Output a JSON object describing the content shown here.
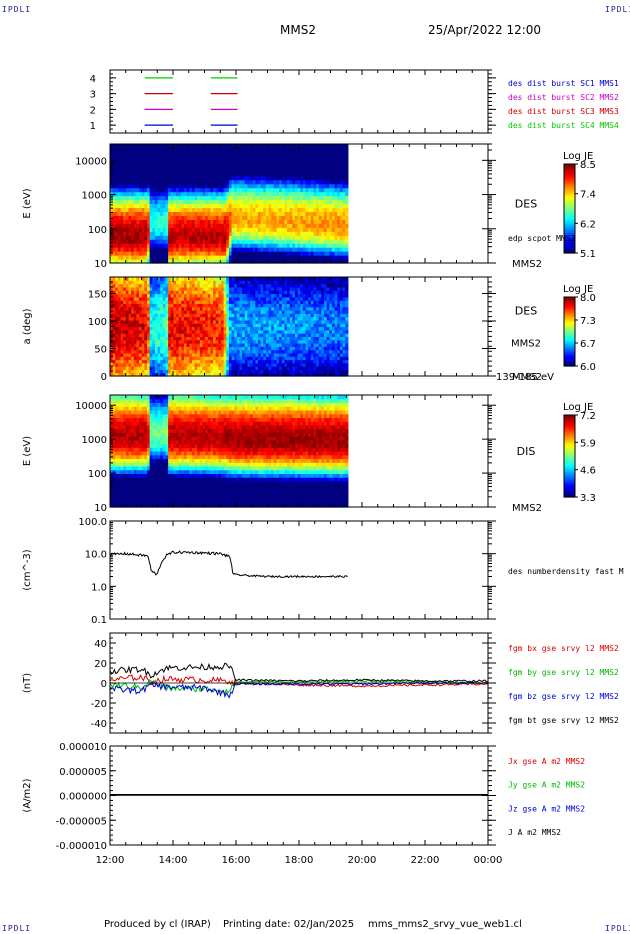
{
  "header": {
    "corner_label": "IPDLI",
    "spacecraft": "MMS2",
    "datetime": "25/Apr/2022 12:00"
  },
  "footer": {
    "produced_by": "Produced by cl (IRAP)",
    "printing_date": "Printing date: 02/Jan/2025",
    "filename": "mms_mms2_srvy_vue_web1.cl"
  },
  "colors": {
    "mms1": "#0000cc",
    "mms2": "#cc00cc",
    "mms3": "#cc0000",
    "mms4": "#00cc00",
    "bx": "#dd0000",
    "by": "#00bb00",
    "bz": "#0000dd",
    "bt": "#000000"
  },
  "chart_data": [
    {
      "type": "timeline",
      "id": "burst",
      "ylabel": "",
      "yticks": [
        "1",
        "2",
        "3",
        "4"
      ],
      "ylim": [
        0.5,
        4.5
      ],
      "legend": [
        {
          "name": "des dist burst SC1 MMS1",
          "color": "#0000cc"
        },
        {
          "name": "des dist burst SC2 MMS2",
          "color": "#cc00cc"
        },
        {
          "name": "des dist burst SC3 MMS3",
          "color": "#cc0000"
        },
        {
          "name": "des dist burst SC4 MMS4",
          "color": "#00cc00"
        }
      ],
      "segments_hours": [
        [
          13.1,
          14.0
        ],
        [
          15.2,
          16.05
        ]
      ]
    },
    {
      "type": "heatmap",
      "id": "des-energy",
      "ylabel": "E (eV)",
      "yscale": "log",
      "ylim": [
        10,
        30000
      ],
      "yticks": [
        "10",
        "100",
        "1000",
        "10000"
      ],
      "instrument": "DES",
      "extra_label": "edp scpot MMS2",
      "spacecraft_label": "MMS2",
      "colorbar": {
        "title": "Log JE",
        "ticks": [
          "5.1",
          "6.2",
          "7.4",
          "8.5"
        ]
      },
      "data_end_hour": 19.55,
      "profile": [
        {
          "x": 12.0,
          "peak": 60,
          "level": 8.4
        },
        {
          "x": 13.2,
          "peak": 60,
          "level": 8.4
        },
        {
          "x": 13.3,
          "peak": 150,
          "level": 6.5
        },
        {
          "x": 13.8,
          "peak": 150,
          "level": 6.5
        },
        {
          "x": 13.85,
          "peak": 60,
          "level": 8.3
        },
        {
          "x": 15.7,
          "peak": 60,
          "level": 8.3
        },
        {
          "x": 15.9,
          "peak": 200,
          "level": 7.5
        },
        {
          "x": 19.55,
          "peak": 120,
          "level": 7.6
        }
      ]
    },
    {
      "type": "heatmap",
      "id": "des-pitch",
      "ylabel": "a (deg)",
      "yscale": "linear",
      "ylim": [
        0,
        180
      ],
      "yticks": [
        "0",
        "50",
        "100",
        "150"
      ],
      "instrument": "DES",
      "spacecraft_label": "MMS2",
      "energy_label": "139-185 eV",
      "colorbar": {
        "title": "Log JE",
        "ticks": [
          "6.0",
          "6.7",
          "7.3",
          "8.0"
        ]
      },
      "data_end_hour": 19.55,
      "profile": [
        {
          "x": 12.0,
          "level": 7.9
        },
        {
          "x": 13.2,
          "level": 7.8
        },
        {
          "x": 13.3,
          "level": 6.8
        },
        {
          "x": 13.8,
          "level": 6.9
        },
        {
          "x": 13.85,
          "level": 7.8
        },
        {
          "x": 15.6,
          "level": 7.7
        },
        {
          "x": 15.8,
          "level": 6.6
        },
        {
          "x": 19.55,
          "level": 6.5
        }
      ]
    },
    {
      "type": "heatmap",
      "id": "dis-energy",
      "ylabel": "E (eV)",
      "yscale": "log",
      "ylim": [
        10,
        20000
      ],
      "yticks": [
        "10",
        "100",
        "1000",
        "10000"
      ],
      "instrument": "DIS",
      "spacecraft_label": "MMS2",
      "colorbar": {
        "title": "Log JE",
        "ticks": [
          "3.3",
          "4.6",
          "5.9",
          "7.2"
        ]
      },
      "data_end_hour": 19.55,
      "profile": [
        {
          "x": 12.0,
          "peak": 1200,
          "level": 7.0
        },
        {
          "x": 13.2,
          "peak": 1200,
          "level": 7.0
        },
        {
          "x": 13.3,
          "peak": 1500,
          "level": 5.2
        },
        {
          "x": 13.8,
          "peak": 1500,
          "level": 5.2
        },
        {
          "x": 13.85,
          "peak": 1200,
          "level": 7.0
        },
        {
          "x": 15.6,
          "peak": 1100,
          "level": 7.0
        },
        {
          "x": 15.8,
          "peak": 1000,
          "level": 7.1
        },
        {
          "x": 19.55,
          "peak": 900,
          "level": 7.1
        }
      ]
    },
    {
      "type": "line",
      "id": "density",
      "ylabel": "(cm^-3)",
      "yscale": "log",
      "ylim": [
        0.1,
        100
      ],
      "yticks": [
        "0.1",
        "1.0",
        "10.0",
        "100.0"
      ],
      "legend": [
        {
          "name": "des numberdensity fast M",
          "color": "#000000"
        }
      ],
      "data_end_hour": 19.55,
      "series": [
        {
          "name": "des numberdensity fast M",
          "color": "#000000",
          "x": [
            12.0,
            12.5,
            13.0,
            13.2,
            13.3,
            13.5,
            13.6,
            13.8,
            14.0,
            14.5,
            15.0,
            15.5,
            15.8,
            15.9,
            16.5,
            17.0,
            18.0,
            18.5,
            19.0,
            19.55
          ],
          "y": [
            9.5,
            10.0,
            9.0,
            8.5,
            3.0,
            2.2,
            4.5,
            9.0,
            11.0,
            11.0,
            10.5,
            10.0,
            8.0,
            2.3,
            2.1,
            2.0,
            2.0,
            2.0,
            2.0,
            2.0
          ]
        }
      ]
    },
    {
      "type": "line",
      "id": "bfield",
      "ylabel": "(nT)",
      "yscale": "linear",
      "ylim": [
        -50,
        50
      ],
      "yticks": [
        "-40",
        "-20",
        "0",
        "20",
        "40"
      ],
      "legend": [
        {
          "name": "fgm bx gse srvy l2 MMS2",
          "color": "#dd0000"
        },
        {
          "name": "fgm by gse srvy l2 MMS2",
          "color": "#00bb00"
        },
        {
          "name": "fgm bz gse srvy l2 MMS2",
          "color": "#0000dd"
        },
        {
          "name": "fgm bt gse srvy l2 MMS2",
          "color": "#000000"
        }
      ],
      "series": [
        {
          "name": "fgm bx gse srvy l2 MMS2",
          "color": "#dd0000",
          "x": [
            12.0,
            13.0,
            13.3,
            13.8,
            15.0,
            15.8,
            16.0,
            18.0,
            20.0,
            22.0,
            24.0
          ],
          "y": [
            3,
            6,
            1,
            4,
            3,
            2,
            0,
            -2,
            -3,
            -2,
            -1
          ]
        },
        {
          "name": "fgm by gse srvy l2 MMS2",
          "color": "#00bb00",
          "x": [
            12.0,
            13.0,
            13.3,
            13.8,
            15.0,
            15.8,
            16.0,
            18.0,
            20.0,
            22.0,
            24.0
          ],
          "y": [
            -2,
            -4,
            2,
            -5,
            -6,
            -8,
            1,
            1,
            2,
            1,
            0
          ]
        },
        {
          "name": "fgm bz gse srvy l2 MMS2",
          "color": "#0000dd",
          "x": [
            12.0,
            13.0,
            13.3,
            13.8,
            15.0,
            15.8,
            16.0,
            18.0,
            20.0,
            22.0,
            24.0
          ],
          "y": [
            -6,
            -8,
            -2,
            -4,
            -5,
            -12,
            -1,
            -1,
            -1,
            0,
            0
          ]
        },
        {
          "name": "fgm bt gse srvy l2 MMS2",
          "color": "#000000",
          "x": [
            12.0,
            13.0,
            13.3,
            13.8,
            15.0,
            15.8,
            16.0,
            18.0,
            20.0,
            22.0,
            24.0
          ],
          "y": [
            12,
            14,
            8,
            15,
            16,
            17,
            3,
            2,
            3,
            2,
            2
          ]
        }
      ]
    },
    {
      "type": "line",
      "id": "current",
      "ylabel": "(A/m2)",
      "yscale": "linear",
      "ylim": [
        -1e-05,
        1e-05
      ],
      "yticks": [
        "-0.000010",
        "-0.000005",
        "0.000000",
        "0.000005",
        "0.000010"
      ],
      "legend": [
        {
          "name": "Jx gse A m2 MMS2",
          "color": "#dd0000"
        },
        {
          "name": "Jy gse A m2 MMS2",
          "color": "#00bb00"
        },
        {
          "name": "Jz gse A m2 MMS2",
          "color": "#0000dd"
        },
        {
          "name": "J A m2 MMS2",
          "color": "#000000"
        }
      ],
      "series": [
        {
          "name": "J A m2 MMS2",
          "color": "#000000",
          "x": [
            12.0,
            24.0
          ],
          "y": [
            2e-07,
            2e-07
          ]
        }
      ]
    }
  ],
  "xaxis": {
    "xlim": [
      12,
      24
    ],
    "ticks": [
      {
        "h": 12,
        "label": "12:00"
      },
      {
        "h": 14,
        "label": "14:00"
      },
      {
        "h": 16,
        "label": "16:00"
      },
      {
        "h": 18,
        "label": "18:00"
      },
      {
        "h": 20,
        "label": "20:00"
      },
      {
        "h": 22,
        "label": "22:00"
      },
      {
        "h": 24,
        "label": "00:00"
      }
    ]
  }
}
